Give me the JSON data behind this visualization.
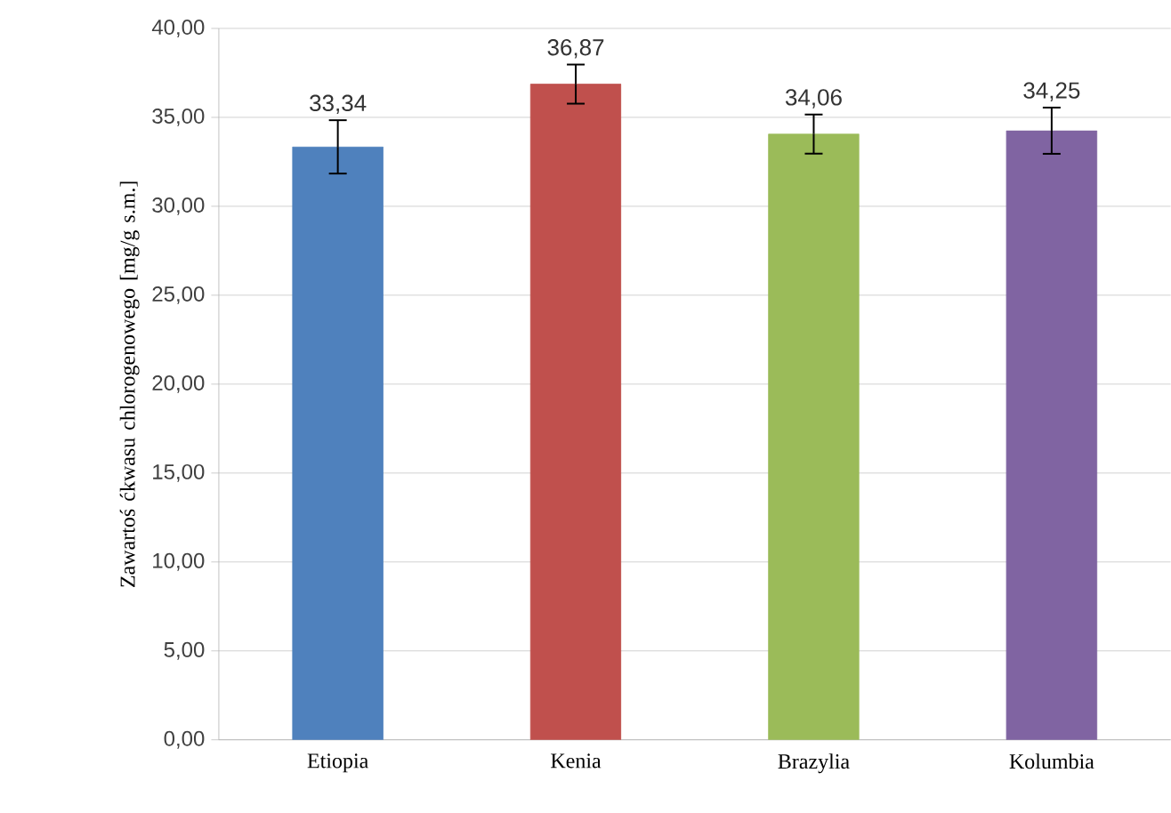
{
  "chart_data": {
    "type": "bar",
    "ylabel": "Zawartoś ćkwasu chlorogenowego [mg/g s.m.]",
    "categories": [
      "Etiopia",
      "Kenia",
      "Brazylia",
      "Kolumbia"
    ],
    "values": [
      33.34,
      36.87,
      34.06,
      34.25
    ],
    "colors": [
      "#4f81bd",
      "#c0504d",
      "#9bbb59",
      "#8064a2"
    ],
    "errors": [
      1.5,
      1.1,
      1.1,
      1.3
    ],
    "value_labels": [
      "33,34",
      "36,87",
      "34,06",
      "34,25"
    ],
    "ylim": [
      0,
      40
    ],
    "yticks": [
      {
        "value": 0,
        "label": "0,00"
      },
      {
        "value": 5,
        "label": "5,00"
      },
      {
        "value": 10,
        "label": "10,00"
      },
      {
        "value": 15,
        "label": "15,00"
      },
      {
        "value": 20,
        "label": "20,00"
      },
      {
        "value": 25,
        "label": "25,00"
      },
      {
        "value": 30,
        "label": "30,00"
      },
      {
        "value": 35,
        "label": "35,00"
      },
      {
        "value": 40,
        "label": "40,00"
      }
    ],
    "grid": "y"
  }
}
